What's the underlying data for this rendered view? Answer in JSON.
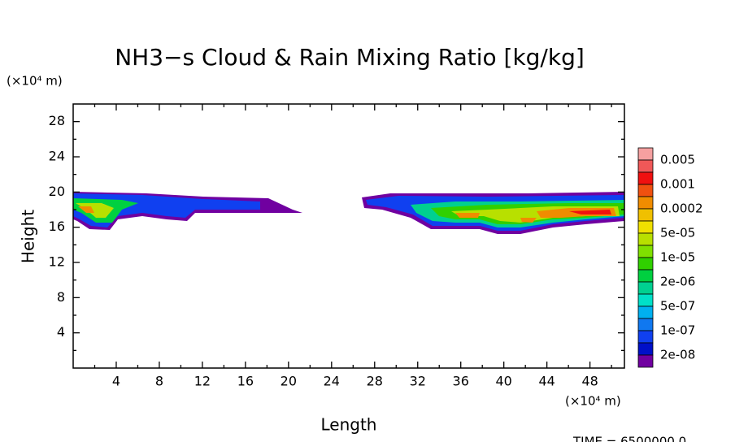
{
  "chart_data": {
    "type": "contour",
    "title": "NH3−s Cloud & Rain Mixing Ratio [kg/kg]",
    "y_unit": "(×10⁴ m)",
    "ylabel": "Height",
    "x_unit": "(×10⁴ m)",
    "xlabel": "Length",
    "footer": "TIME = 6500000.0",
    "xlim": [
      0,
      51.2
    ],
    "xticks": [
      4,
      8,
      12,
      16,
      20,
      24,
      28,
      32,
      36,
      40,
      44,
      48
    ],
    "ylim": [
      0,
      30
    ],
    "yticks": [
      4,
      8,
      12,
      16,
      20,
      24,
      28
    ],
    "colorbar": {
      "colors": [
        "#f5a0a0",
        "#f05858",
        "#f01010",
        "#f05010",
        "#f08c00",
        "#f0c000",
        "#f0e000",
        "#b8e000",
        "#80e000",
        "#30d000",
        "#00d040",
        "#00d090",
        "#00e0c8",
        "#00b0f0",
        "#1078f0",
        "#1040f0",
        "#0010c8",
        "#7000a0"
      ],
      "labels": [
        "0.005",
        "0.001",
        "0.0002",
        "5e-05",
        "1e-05",
        "2e-06",
        "5e-07",
        "1e-07",
        "2e-08"
      ]
    }
  }
}
